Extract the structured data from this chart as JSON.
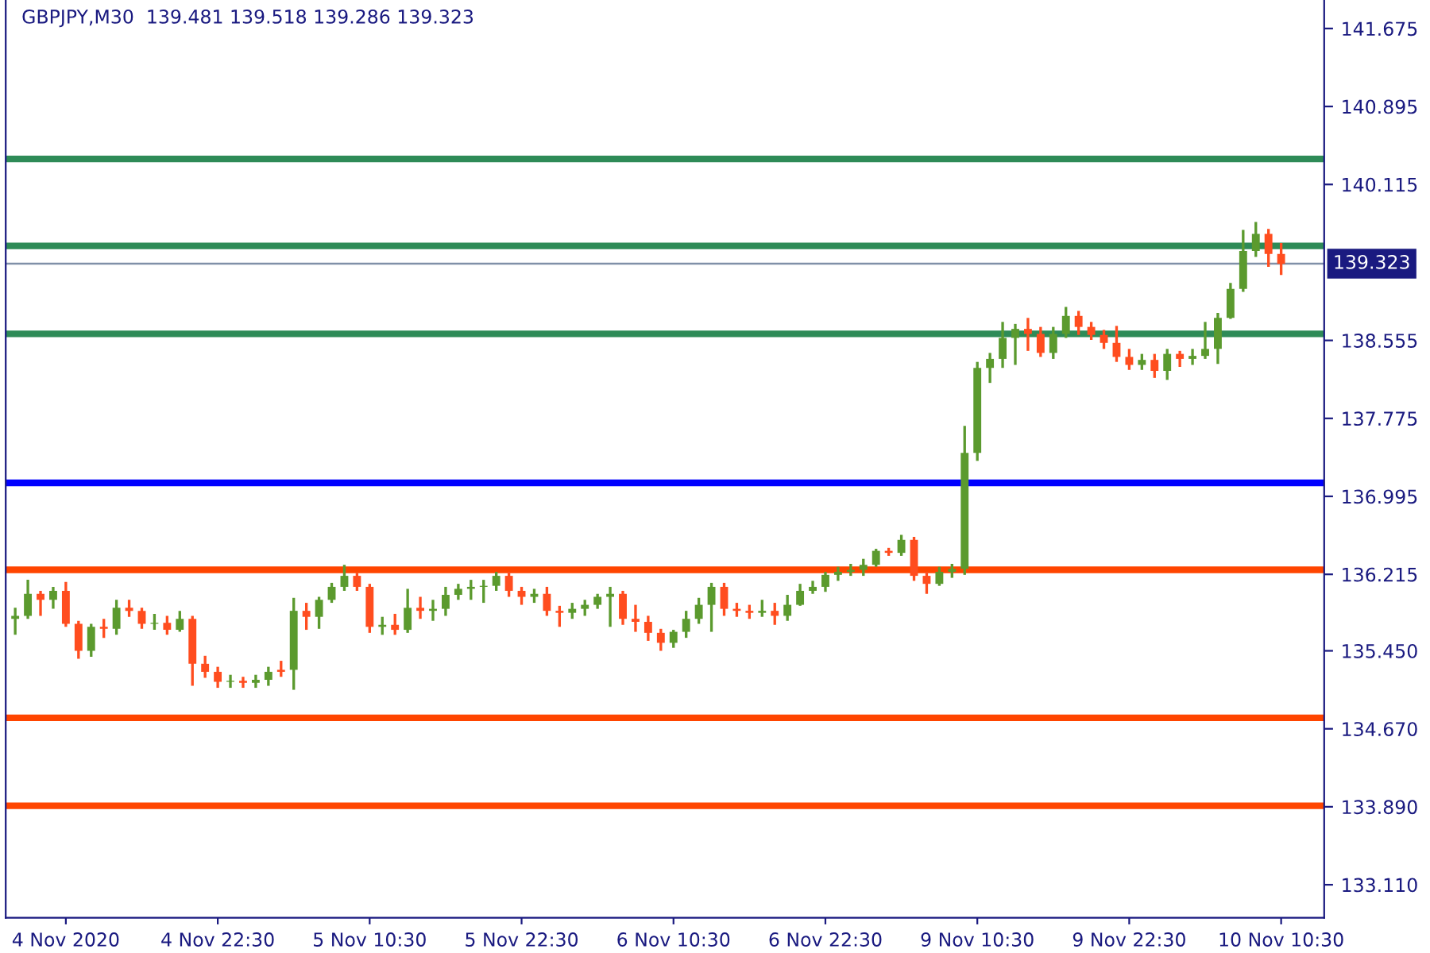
{
  "chart_data": {
    "type": "candlestick",
    "title": "GBPJPY,M30  139.481 139.518 139.286 139.323",
    "categories": [
      null,
      null,
      null,
      null,
      "4 Nov 2020",
      null,
      null,
      null,
      null,
      null,
      null,
      null,
      null,
      null,
      null,
      null,
      "4 Nov 22:30",
      null,
      null,
      null,
      null,
      null,
      null,
      null,
      null,
      null,
      null,
      null,
      "5 Nov 10:30",
      null,
      null,
      null,
      null,
      null,
      null,
      null,
      null,
      null,
      null,
      null,
      "5 Nov 22:30",
      null,
      null,
      null,
      null,
      null,
      null,
      null,
      null,
      null,
      null,
      null,
      "6 Nov 10:30",
      null,
      null,
      null,
      null,
      null,
      null,
      null,
      null,
      null,
      null,
      null,
      "6 Nov 22:30",
      null,
      null,
      null,
      null,
      null,
      null,
      null,
      null,
      null,
      null,
      null,
      "9 Nov 10:30",
      null,
      null,
      null,
      null,
      null,
      null,
      null,
      null,
      null,
      null,
      null,
      "9 Nov 22:30",
      null,
      null,
      null,
      null,
      null,
      null,
      null,
      null,
      null,
      null,
      null,
      "10 Nov 10:30"
    ],
    "ohlc": [
      [
        135.77,
        135.88,
        135.61,
        135.8
      ],
      [
        135.8,
        136.16,
        135.77,
        136.02
      ],
      [
        136.02,
        136.05,
        135.8,
        135.96
      ],
      [
        135.96,
        136.09,
        135.87,
        136.05
      ],
      [
        136.05,
        136.14,
        135.69,
        135.72
      ],
      [
        135.72,
        135.75,
        135.37,
        135.45
      ],
      [
        135.45,
        135.72,
        135.39,
        135.69
      ],
      [
        135.69,
        135.77,
        135.58,
        135.67
      ],
      [
        135.67,
        135.96,
        135.61,
        135.88
      ],
      [
        135.88,
        135.96,
        135.79,
        135.85
      ],
      [
        135.85,
        135.88,
        135.67,
        135.72
      ],
      [
        135.72,
        135.82,
        135.66,
        135.73
      ],
      [
        135.73,
        135.8,
        135.61,
        135.66
      ],
      [
        135.66,
        135.85,
        135.64,
        135.77
      ],
      [
        135.77,
        135.8,
        135.1,
        135.32
      ],
      [
        135.32,
        135.4,
        135.18,
        135.24
      ],
      [
        135.24,
        135.29,
        135.08,
        135.14
      ],
      [
        135.14,
        135.21,
        135.08,
        135.15
      ],
      [
        135.15,
        135.19,
        135.08,
        135.13
      ],
      [
        135.13,
        135.21,
        135.08,
        135.16
      ],
      [
        135.16,
        135.29,
        135.1,
        135.24
      ],
      [
        135.24,
        135.35,
        135.19,
        135.26
      ],
      [
        135.26,
        135.98,
        135.06,
        135.85
      ],
      [
        135.85,
        135.93,
        135.66,
        135.79
      ],
      [
        135.79,
        135.99,
        135.67,
        135.96
      ],
      [
        135.96,
        136.13,
        135.93,
        136.09
      ],
      [
        136.09,
        136.31,
        136.05,
        136.2
      ],
      [
        136.2,
        136.23,
        136.05,
        136.09
      ],
      [
        136.09,
        136.12,
        135.63,
        135.69
      ],
      [
        135.69,
        135.79,
        135.61,
        135.71
      ],
      [
        135.71,
        135.82,
        135.61,
        135.66
      ],
      [
        135.66,
        136.07,
        135.63,
        135.88
      ],
      [
        135.88,
        135.99,
        135.77,
        135.85
      ],
      [
        135.85,
        135.96,
        135.75,
        135.87
      ],
      [
        135.87,
        136.09,
        135.8,
        136.01
      ],
      [
        136.01,
        136.12,
        135.96,
        136.07
      ],
      [
        136.07,
        136.16,
        135.96,
        136.09
      ],
      [
        136.09,
        136.16,
        135.93,
        136.1
      ],
      [
        136.1,
        136.24,
        136.05,
        136.2
      ],
      [
        136.2,
        136.24,
        135.99,
        136.05
      ],
      [
        136.05,
        136.09,
        135.91,
        135.99
      ],
      [
        135.99,
        136.07,
        135.93,
        136.02
      ],
      [
        136.02,
        136.09,
        135.8,
        135.85
      ],
      [
        135.85,
        135.9,
        135.69,
        135.83
      ],
      [
        135.83,
        135.93,
        135.77,
        135.87
      ],
      [
        135.87,
        135.96,
        135.8,
        135.91
      ],
      [
        135.91,
        136.02,
        135.87,
        135.99
      ],
      [
        135.99,
        136.09,
        135.69,
        136.02
      ],
      [
        136.02,
        136.05,
        135.71,
        135.77
      ],
      [
        135.77,
        135.91,
        135.64,
        135.74
      ],
      [
        135.74,
        135.8,
        135.55,
        135.63
      ],
      [
        135.63,
        135.67,
        135.45,
        135.53
      ],
      [
        135.53,
        135.66,
        135.48,
        135.64
      ],
      [
        135.64,
        135.85,
        135.58,
        135.77
      ],
      [
        135.77,
        135.98,
        135.72,
        135.91
      ],
      [
        135.91,
        136.13,
        135.64,
        136.09
      ],
      [
        136.09,
        136.13,
        135.8,
        135.87
      ],
      [
        135.87,
        135.93,
        135.79,
        135.85
      ],
      [
        135.85,
        135.91,
        135.77,
        135.83
      ],
      [
        135.83,
        135.96,
        135.79,
        135.85
      ],
      [
        135.85,
        135.93,
        135.71,
        135.8
      ],
      [
        135.8,
        136.01,
        135.75,
        135.91
      ],
      [
        135.91,
        136.12,
        135.9,
        136.05
      ],
      [
        136.05,
        136.15,
        136.02,
        136.09
      ],
      [
        136.09,
        136.24,
        136.04,
        136.21
      ],
      [
        136.21,
        136.29,
        136.15,
        136.24
      ],
      [
        136.24,
        136.32,
        136.2,
        136.26
      ],
      [
        136.26,
        136.37,
        136.2,
        136.31
      ],
      [
        136.31,
        136.47,
        136.29,
        136.45
      ],
      [
        136.45,
        136.48,
        136.4,
        136.43
      ],
      [
        136.43,
        136.61,
        136.4,
        136.56
      ],
      [
        136.56,
        136.59,
        136.15,
        136.2
      ],
      [
        136.2,
        136.24,
        136.02,
        136.12
      ],
      [
        136.12,
        136.29,
        136.1,
        136.24
      ],
      [
        136.24,
        136.32,
        136.18,
        136.27
      ],
      [
        136.27,
        137.7,
        136.21,
        137.43
      ],
      [
        137.43,
        138.34,
        137.35,
        138.28
      ],
      [
        138.28,
        138.43,
        138.13,
        138.37
      ],
      [
        138.37,
        138.74,
        138.28,
        138.58
      ],
      [
        138.58,
        138.72,
        138.31,
        138.67
      ],
      [
        138.67,
        138.78,
        138.45,
        138.62
      ],
      [
        138.62,
        138.69,
        138.39,
        138.43
      ],
      [
        138.43,
        138.69,
        138.37,
        138.62
      ],
      [
        138.62,
        138.89,
        138.58,
        138.8
      ],
      [
        138.8,
        138.85,
        138.61,
        138.69
      ],
      [
        138.69,
        138.74,
        138.56,
        138.61
      ],
      [
        138.61,
        138.66,
        138.47,
        138.53
      ],
      [
        138.53,
        138.7,
        138.34,
        138.39
      ],
      [
        138.39,
        138.47,
        138.26,
        138.31
      ],
      [
        138.31,
        138.42,
        138.26,
        138.36
      ],
      [
        138.36,
        138.42,
        138.18,
        138.25
      ],
      [
        138.25,
        138.47,
        138.16,
        138.42
      ],
      [
        138.42,
        138.45,
        138.29,
        138.37
      ],
      [
        138.37,
        138.47,
        138.31,
        138.4
      ],
      [
        138.4,
        138.74,
        138.37,
        138.47
      ],
      [
        138.47,
        138.83,
        138.32,
        138.78
      ],
      [
        138.78,
        139.13,
        138.77,
        139.07
      ],
      [
        139.07,
        139.66,
        139.04,
        139.45
      ],
      [
        139.45,
        139.74,
        139.39,
        139.62
      ],
      [
        139.62,
        139.67,
        139.29,
        139.42
      ],
      [
        139.42,
        139.53,
        139.21,
        139.32
      ]
    ],
    "colors": [
      "#5b9a2e",
      "#5b9a2e",
      "#ff4d1f",
      "#5b9a2e",
      "#ff4d1f",
      "#ff4d1f",
      "#5b9a2e",
      "#ff4d1f",
      "#5b9a2e",
      "#ff4d1f",
      "#ff4d1f",
      "#5b9a2e",
      "#ff4d1f",
      "#5b9a2e",
      "#ff4d1f",
      "#ff4d1f",
      "#ff4d1f",
      "#5b9a2e",
      "#ff4d1f",
      "#5b9a2e",
      "#5b9a2e",
      "#ff4d1f",
      "#5b9a2e",
      "#ff4d1f",
      "#5b9a2e",
      "#5b9a2e",
      "#5b9a2e",
      "#ff4d1f",
      "#ff4d1f",
      "#5b9a2e",
      "#ff4d1f",
      "#5b9a2e",
      "#ff4d1f",
      "#5b9a2e",
      "#5b9a2e",
      "#5b9a2e",
      "#5b9a2e",
      "#5b9a2e",
      "#5b9a2e",
      "#ff4d1f",
      "#ff4d1f",
      "#5b9a2e",
      "#ff4d1f",
      "#ff4d1f",
      "#5b9a2e",
      "#5b9a2e",
      "#5b9a2e",
      "#5b9a2e",
      "#ff4d1f",
      "#ff4d1f",
      "#ff4d1f",
      "#ff4d1f",
      "#5b9a2e",
      "#5b9a2e",
      "#5b9a2e",
      "#5b9a2e",
      "#ff4d1f",
      "#ff4d1f",
      "#ff4d1f",
      "#5b9a2e",
      "#ff4d1f",
      "#5b9a2e",
      "#5b9a2e",
      "#5b9a2e",
      "#5b9a2e",
      "#5b9a2e",
      "#5b9a2e",
      "#5b9a2e",
      "#5b9a2e",
      "#ff4d1f",
      "#5b9a2e",
      "#ff4d1f",
      "#ff4d1f",
      "#5b9a2e",
      "#5b9a2e",
      "#5b9a2e",
      "#5b9a2e",
      "#5b9a2e",
      "#5b9a2e",
      "#5b9a2e",
      "#ff4d1f",
      "#ff4d1f",
      "#5b9a2e",
      "#5b9a2e",
      "#ff4d1f",
      "#ff4d1f",
      "#ff4d1f",
      "#ff4d1f",
      "#ff4d1f",
      "#5b9a2e",
      "#ff4d1f",
      "#5b9a2e",
      "#ff4d1f",
      "#5b9a2e",
      "#5b9a2e",
      "#5b9a2e",
      "#5b9a2e",
      "#5b9a2e",
      "#5b9a2e",
      "#ff4d1f",
      "#ff4d1f"
    ],
    "ylim": [
      132.78,
      141.96
    ],
    "yticks": [
      {
        "value": 133.11,
        "label": "133.110"
      },
      {
        "value": 133.89,
        "label": "133.890"
      },
      {
        "value": 134.67,
        "label": "134.670"
      },
      {
        "value": 135.45,
        "label": "135.450"
      },
      136.215,
      136.995,
      137.775,
      138.555,
      140.115,
      140.895,
      141.675
    ],
    "ref_lines": [
      {
        "axis": "y",
        "value": 140.37,
        "color": "#2e8b57"
      },
      {
        "axis": "y",
        "value": 139.5,
        "color": "#2e8b57"
      },
      {
        "axis": "y",
        "value": 138.62,
        "color": "#2e8b57"
      },
      {
        "axis": "y",
        "value": 137.13,
        "color": "#0000ff"
      },
      {
        "axis": "y",
        "value": 136.26,
        "color": "#ff4500"
      },
      {
        "axis": "y",
        "value": 134.78,
        "color": "#ff4500"
      },
      {
        "axis": "y",
        "value": 133.9,
        "color": "#ff4500"
      },
      {
        "axis": "y",
        "value": 139.323,
        "label": "139.323",
        "color": "#8090a8"
      }
    ],
    "grid": false,
    "legend": false
  }
}
